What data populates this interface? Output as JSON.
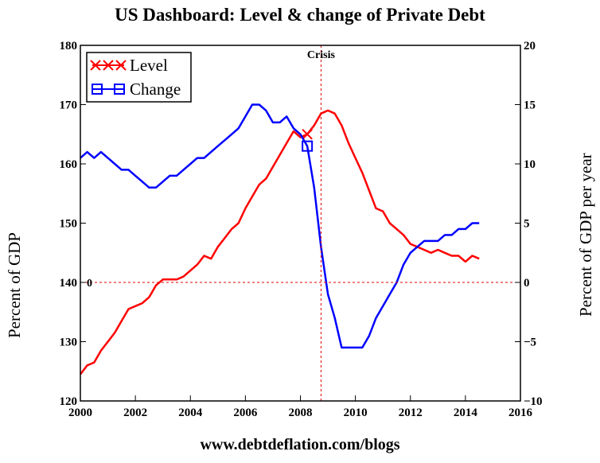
{
  "chart_data": {
    "type": "line",
    "title": "US Dashboard: Level & change of Private Debt",
    "ylabel": "Percent of GDP",
    "y2label": "Percent of GDP per year",
    "xlim": [
      2000,
      2016
    ],
    "ylim": [
      120,
      180
    ],
    "y2lim": [
      -10,
      20
    ],
    "x_ticks": [
      "2000",
      "2002",
      "2004",
      "2006",
      "2008",
      "2010",
      "2012",
      "2014",
      "2016"
    ],
    "y_ticks": [
      "120",
      "130",
      "140",
      "150",
      "160",
      "170",
      "180"
    ],
    "y2_ticks": [
      "−10",
      "−5",
      "0",
      "5",
      "10",
      "15",
      "20"
    ],
    "legend_position": "top-left",
    "grid": false,
    "annotations": {
      "crisis_label": "Crisis",
      "crisis_x": 2008.75,
      "zero_label": "0",
      "zero_y2": 0
    },
    "series": [
      {
        "name": "Level",
        "axis": "left",
        "color": "#ff0000",
        "marker": "x",
        "x": [
          2000,
          2000.25,
          2000.5,
          2000.75,
          2001,
          2001.25,
          2001.5,
          2001.75,
          2002,
          2002.25,
          2002.5,
          2002.75,
          2003,
          2003.25,
          2003.5,
          2003.75,
          2004,
          2004.25,
          2004.5,
          2004.75,
          2005,
          2005.25,
          2005.5,
          2005.75,
          2006,
          2006.25,
          2006.5,
          2006.75,
          2007,
          2007.25,
          2007.5,
          2007.75,
          2008,
          2008.25,
          2008.5,
          2008.75,
          2009,
          2009.25,
          2009.5,
          2009.75,
          2010,
          2010.25,
          2010.5,
          2010.75,
          2011,
          2011.25,
          2011.5,
          2011.75,
          2012,
          2012.25,
          2012.5,
          2012.75,
          2013,
          2013.25,
          2013.5,
          2013.75,
          2014,
          2014.25,
          2014.5
        ],
        "y": [
          124.5,
          126,
          126.5,
          128.5,
          130,
          131.5,
          133.5,
          135.5,
          136,
          136.5,
          137.5,
          139.5,
          140.5,
          140.5,
          140.5,
          141,
          142,
          143,
          144.5,
          144,
          146,
          147.5,
          149,
          150,
          152.5,
          154.5,
          156.5,
          157.5,
          159.5,
          161.5,
          163.5,
          165.5,
          164.5,
          165,
          166.5,
          168.5,
          169,
          168.5,
          166.5,
          163.5,
          161,
          158.5,
          155.5,
          152.5,
          152,
          150,
          149,
          148,
          146.5,
          146,
          145.5,
          145,
          145.5,
          145,
          144.5,
          144.5,
          143.5,
          144.5,
          144
        ]
      },
      {
        "name": "Change",
        "axis": "right",
        "color": "#0000ff",
        "marker": "square",
        "x": [
          2000,
          2000.25,
          2000.5,
          2000.75,
          2001,
          2001.25,
          2001.5,
          2001.75,
          2002,
          2002.25,
          2002.5,
          2002.75,
          2003,
          2003.25,
          2003.5,
          2003.75,
          2004,
          2004.25,
          2004.5,
          2004.75,
          2005,
          2005.25,
          2005.5,
          2005.75,
          2006,
          2006.25,
          2006.5,
          2006.75,
          2007,
          2007.25,
          2007.5,
          2007.75,
          2008,
          2008.25,
          2008.5,
          2008.75,
          2009,
          2009.25,
          2009.5,
          2009.75,
          2010,
          2010.25,
          2010.5,
          2010.75,
          2011,
          2011.25,
          2011.5,
          2011.75,
          2012,
          2012.25,
          2012.5,
          2012.75,
          2013,
          2013.25,
          2013.5,
          2013.75,
          2014,
          2014.25,
          2014.5
        ],
        "y": [
          10.5,
          11,
          10.5,
          11,
          10.5,
          10,
          9.5,
          9.5,
          9,
          8.5,
          8,
          8,
          8.5,
          9,
          9,
          9.5,
          10,
          10.5,
          10.5,
          11,
          11.5,
          12,
          12.5,
          13,
          14,
          15,
          15,
          14.5,
          13.5,
          13.5,
          14,
          13,
          12.5,
          11.5,
          8,
          3,
          -1,
          -3,
          -5.5,
          -5.5,
          -5.5,
          -5.5,
          -4.5,
          -3,
          -2,
          -1,
          0,
          1.5,
          2.5,
          3,
          3.5,
          3.5,
          3.5,
          4,
          4,
          4.5,
          4.5,
          5,
          5
        ]
      }
    ]
  },
  "footer": {
    "url": "www.debtdeflation.com/blogs"
  }
}
